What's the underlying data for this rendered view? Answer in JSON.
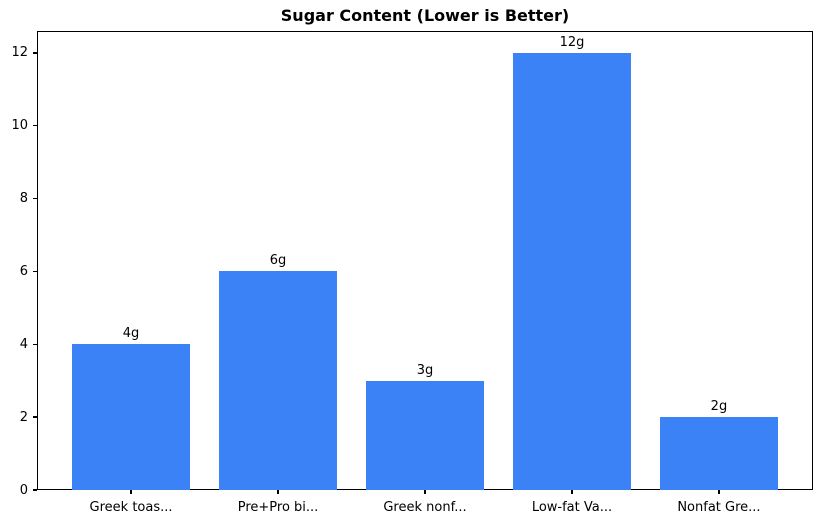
{
  "chart_data": {
    "type": "bar",
    "title": "Sugar Content (Lower is Better)",
    "categories": [
      "Greek toas...",
      "Pre+Pro bi...",
      "Greek nonf...",
      "Low-fat Va...",
      "Nonfat Gre..."
    ],
    "values": [
      4,
      6,
      3,
      12,
      2
    ],
    "value_labels": [
      "4g",
      "6g",
      "3g",
      "12g",
      "2g"
    ],
    "yticks": [
      0,
      2,
      4,
      6,
      8,
      10,
      12
    ],
    "ylim": [
      0,
      12.6
    ],
    "xlabel": "",
    "ylabel": "",
    "bar_color": "#3b82f6",
    "bar_width_frac": 0.8,
    "grid": false,
    "legend_position": "none"
  }
}
